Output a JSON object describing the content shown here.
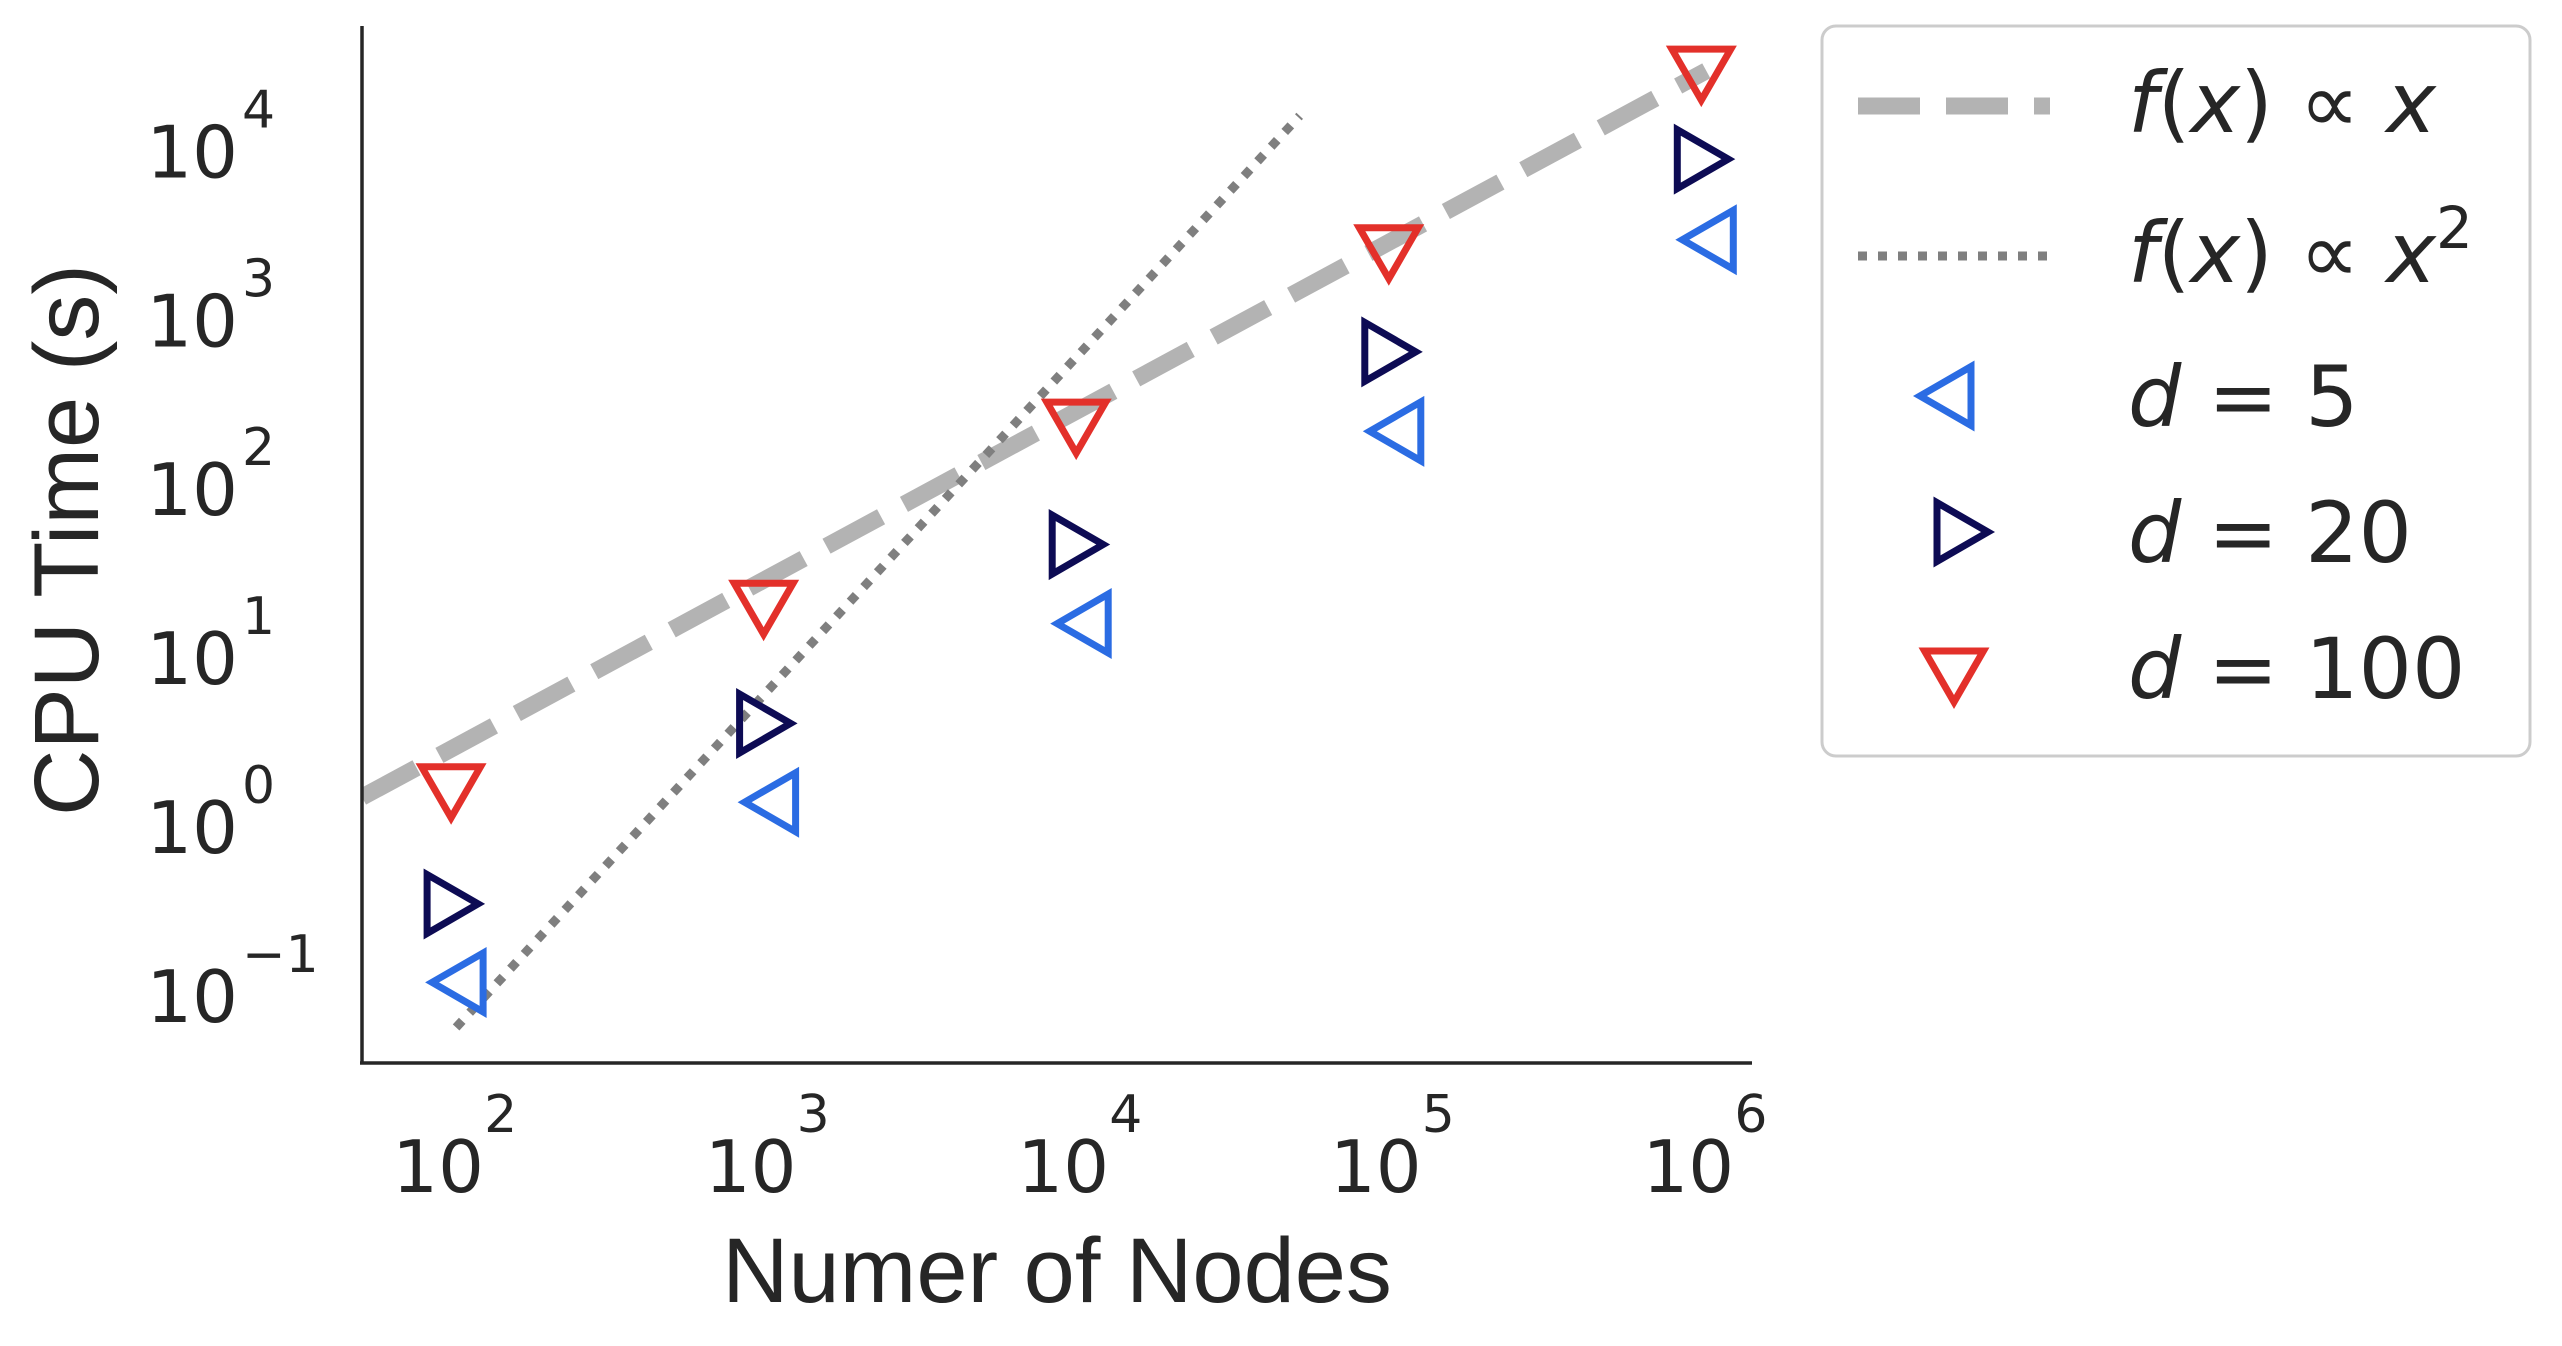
{
  "chart_data": {
    "type": "scatter",
    "xlabel": "Numer of Nodes",
    "ylabel": "CPU Time (s)",
    "xscale": "log",
    "yscale": "log",
    "xlim": [
      50,
      1400000
    ],
    "ylim": [
      0.04,
      60000
    ],
    "x_ticks": [
      {
        "value": 100,
        "base": "10",
        "exp": "2"
      },
      {
        "value": 1000,
        "base": "10",
        "exp": "3"
      },
      {
        "value": 10000,
        "base": "10",
        "exp": "4"
      },
      {
        "value": 100000,
        "base": "10",
        "exp": "5"
      },
      {
        "value": 1000000,
        "base": "10",
        "exp": "6"
      }
    ],
    "y_ticks": [
      {
        "value": 0.1,
        "base": "10",
        "exp": "−1"
      },
      {
        "value": 1,
        "base": "10",
        "exp": "0"
      },
      {
        "value": 10,
        "base": "10",
        "exp": "1"
      },
      {
        "value": 100,
        "base": "10",
        "exp": "2"
      },
      {
        "value": 1000,
        "base": "10",
        "exp": "3"
      },
      {
        "value": 10000,
        "base": "10",
        "exp": "4"
      }
    ],
    "grid": false,
    "legend_position": "outside-right",
    "reference_lines": [
      {
        "name": "f(x) ∝ x",
        "style": "dashed",
        "color": "#b3b3b3",
        "x": [
          50,
          1000000
        ],
        "y": [
          1.5,
          30000
        ]
      },
      {
        "name": "f(x) ∝ x^2",
        "style": "dotted",
        "color": "#7f7f7f",
        "x": [
          100,
          50000
        ],
        "y": [
          0.065,
          16250
        ]
      }
    ],
    "series": [
      {
        "name": "d = 5",
        "legend_var": "d",
        "legend_value": "5",
        "marker": "triangle-left",
        "color": "#2b6ce3",
        "x": [
          100,
          1000,
          10000,
          100000,
          1000000
        ],
        "y": [
          0.12,
          1.4,
          16,
          220,
          3000
        ]
      },
      {
        "name": "d = 20",
        "legend_var": "d",
        "legend_value": "20",
        "marker": "triangle-right",
        "color": "#0d0b54",
        "x": [
          100,
          1000,
          10000,
          100000,
          1000000
        ],
        "y": [
          0.35,
          4.1,
          47,
          650,
          9000
        ]
      },
      {
        "name": "d = 100",
        "legend_var": "d",
        "legend_value": "100",
        "marker": "triangle-down",
        "color": "#e3302a",
        "x": [
          100,
          1000,
          10000,
          100000,
          1000000
        ],
        "y": [
          1.8,
          22,
          260,
          2800,
          32000
        ]
      }
    ]
  }
}
